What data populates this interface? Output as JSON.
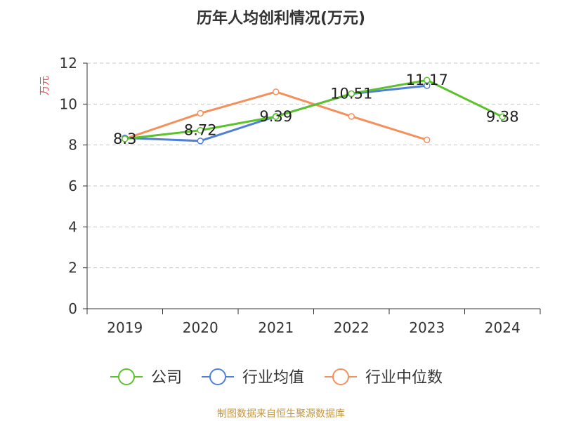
{
  "colors": {
    "company": "#5bc22a",
    "industry_avg": "#4f7fd9",
    "industry_median": "#f5905c",
    "ylabel": "#e0474c",
    "footer": "#c8973b",
    "grid": "#c8c8c8",
    "axis": "#333333"
  },
  "chart_data": {
    "type": "line",
    "title": "历年人均创利情况(万元)",
    "xlabel": "",
    "ylabel": "万元",
    "categories": [
      "2019",
      "2020",
      "2021",
      "2022",
      "2023",
      "2024"
    ],
    "ylim": [
      0,
      12
    ],
    "yticks": [
      0,
      2,
      4,
      6,
      8,
      10,
      12
    ],
    "grid": "horizontal dashed",
    "legend_position": "bottom",
    "series": [
      {
        "name": "公司",
        "values": [
          8.3,
          8.72,
          9.39,
          10.51,
          11.17,
          9.38
        ],
        "labels": [
          "8.3",
          "8.72",
          "9.39",
          "10.51",
          "11.17",
          "9.38"
        ],
        "color_key": "company"
      },
      {
        "name": "行业均值",
        "values": [
          8.35,
          8.2,
          9.4,
          10.5,
          10.9,
          null
        ],
        "color_key": "industry_avg"
      },
      {
        "name": "行业中位数",
        "values": [
          8.3,
          9.55,
          10.6,
          9.4,
          8.25,
          null
        ],
        "color_key": "industry_median"
      }
    ]
  },
  "footer": {
    "source": "制图数据来自恒生聚源数据库"
  }
}
